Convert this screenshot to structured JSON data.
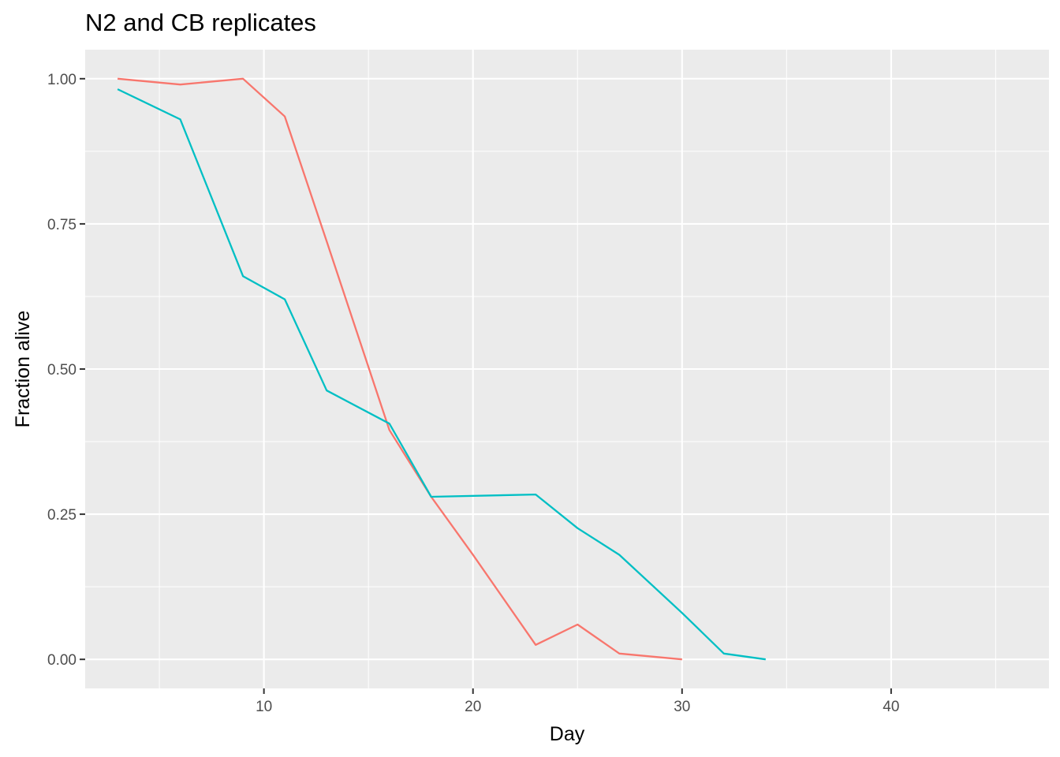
{
  "chart_data": {
    "type": "line",
    "title": "N2 and CB replicates",
    "xlabel": "Day",
    "ylabel": "Fraction alive",
    "xlim": [
      1.45,
      47.55
    ],
    "ylim": [
      -0.05,
      1.05
    ],
    "x_ticks": [
      10,
      20,
      30,
      40
    ],
    "x_tick_labels": [
      "10",
      "20",
      "30",
      "40"
    ],
    "y_ticks": [
      0,
      0.25,
      0.5,
      0.75,
      1
    ],
    "y_tick_labels": [
      "0.00",
      "0.25",
      "0.50",
      "0.75",
      "1.00"
    ],
    "grid": true,
    "legend": "none",
    "series": [
      {
        "color": "#F8766D",
        "x": [
          3,
          6,
          9,
          11,
          13,
          16,
          18,
          20,
          23,
          25,
          27,
          30
        ],
        "y": [
          1.0,
          0.99,
          1.0,
          0.935,
          0.72,
          0.395,
          0.28,
          0.18,
          0.025,
          0.06,
          0.01,
          0.0
        ]
      },
      {
        "color": "#00BFC4",
        "x": [
          3,
          6,
          9,
          11,
          13,
          16,
          18,
          23,
          25,
          27,
          30,
          32,
          34
        ],
        "y": [
          0.982,
          0.93,
          0.66,
          0.62,
          0.463,
          0.406,
          0.28,
          0.284,
          0.226,
          0.18,
          0.08,
          0.01,
          0.0
        ]
      }
    ]
  }
}
